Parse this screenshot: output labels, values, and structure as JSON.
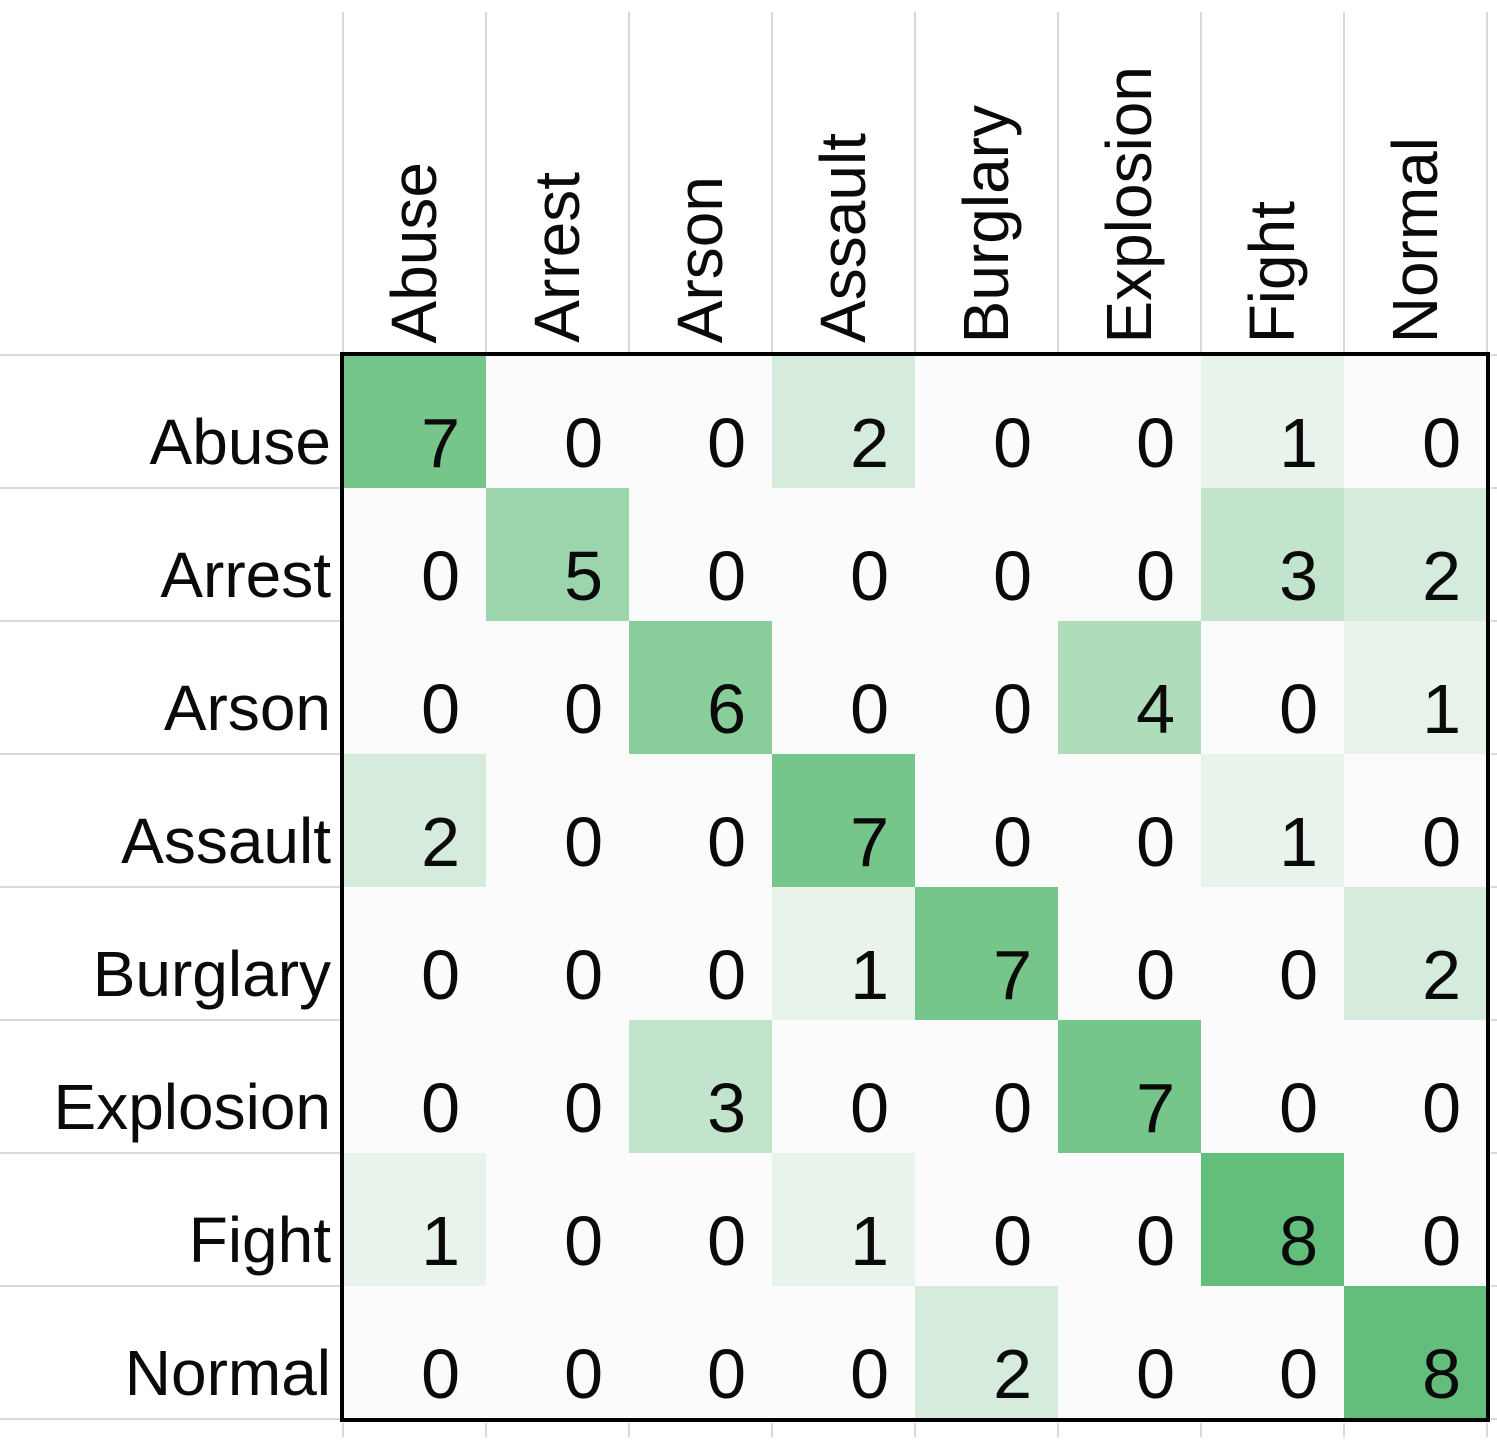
{
  "chart_data": {
    "type": "heatmap",
    "description": "confusion matrix, actual classes as rows vs predicted classes as columns",
    "categories": [
      "Abuse",
      "Arrest",
      "Arson",
      "Assault",
      "Burglary",
      "Explosion",
      "Fight",
      "Normal"
    ],
    "row_labels": [
      "Abuse",
      "Arrest",
      "Arson",
      "Assault",
      "Burglary",
      "Explosion",
      "Fight",
      "Normal"
    ],
    "col_labels": [
      "Abuse",
      "Arrest",
      "Arson",
      "Assault",
      "Burglary",
      "Explosion",
      "Fight",
      "Normal"
    ],
    "rows": [
      [
        7,
        0,
        0,
        2,
        0,
        0,
        1,
        0
      ],
      [
        0,
        5,
        0,
        0,
        0,
        0,
        3,
        2
      ],
      [
        0,
        0,
        6,
        0,
        0,
        4,
        0,
        1
      ],
      [
        2,
        0,
        0,
        7,
        0,
        0,
        1,
        0
      ],
      [
        0,
        0,
        0,
        1,
        7,
        0,
        0,
        2
      ],
      [
        0,
        0,
        3,
        0,
        0,
        7,
        0,
        0
      ],
      [
        1,
        0,
        0,
        1,
        0,
        0,
        8,
        0
      ],
      [
        0,
        0,
        0,
        0,
        2,
        0,
        0,
        8
      ]
    ],
    "color_scale": {
      "min_value": 0,
      "max_value": 8,
      "min_color": "#FBFBFC",
      "max_color": "#63BE7B"
    },
    "layout": {
      "row_labels_side": "left",
      "col_labels_side": "top",
      "col_label_rotation_deg": 90,
      "grid": "gridlines outside matrix only",
      "legend": "none"
    }
  },
  "style": {
    "gridline_color": "#D9D9D9",
    "matrix_border_color": "#000000",
    "text_color": "#0A0A0A",
    "background_color": "#FFFFFF"
  }
}
